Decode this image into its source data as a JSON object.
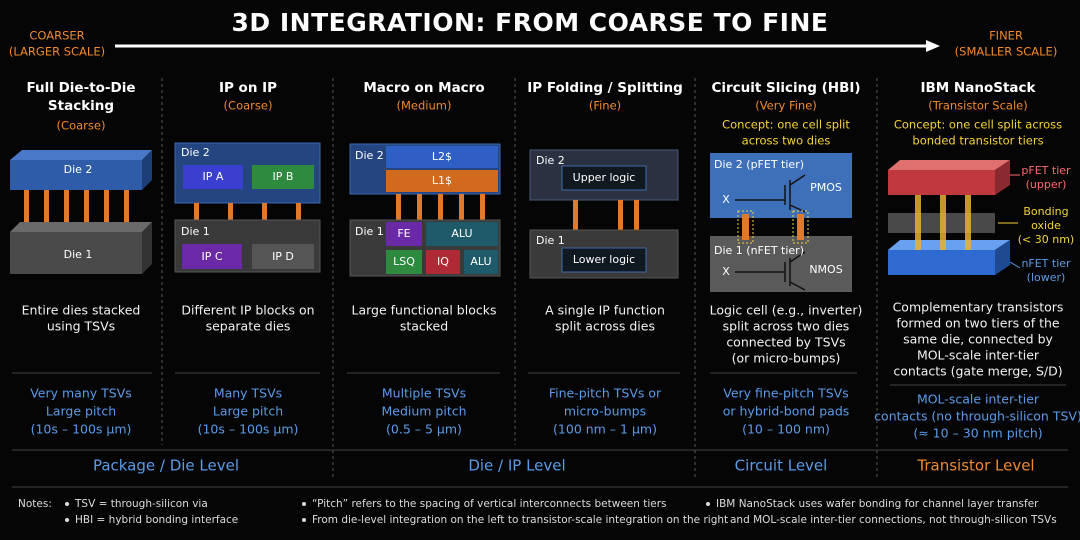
{
  "header": {
    "title": "3D INTEGRATION: FROM COARSE TO FINE",
    "left": [
      "COARSER",
      "(LARGER SCALE)"
    ],
    "right": [
      "FINER",
      "(SMALLER SCALE)"
    ]
  },
  "columns": [
    {
      "title": [
        "Full Die-to-Die",
        "Stacking"
      ],
      "scale": "(Coarse)",
      "diagram": [
        "Die 2",
        "Die 1"
      ],
      "description": [
        "Entire dies stacked",
        "using TSVs"
      ],
      "interconnect": [
        "Very many TSVs",
        "Large pitch",
        "(10s – 100s µm)"
      ]
    },
    {
      "title": [
        "IP on IP"
      ],
      "scale": "(Coarse)",
      "diagram": [
        "Die 2",
        "IP A",
        "IP B",
        "Die 1",
        "IP C",
        "IP D"
      ],
      "description": [
        "Different IP blocks on",
        "separate dies"
      ],
      "interconnect": [
        "Many TSVs",
        "Large pitch",
        "(10s – 100s µm)"
      ]
    },
    {
      "title": [
        "Macro on Macro"
      ],
      "scale": "(Medium)",
      "diagram": [
        "Die 2",
        "L2$",
        "L1$",
        "Die 1",
        "FE",
        "ALU",
        "LSQ",
        "IQ",
        "ALU"
      ],
      "description": [
        "Large functional blocks",
        "stacked"
      ],
      "interconnect": [
        "Multiple TSVs",
        "Medium pitch",
        "(0.5 – 5 µm)"
      ]
    },
    {
      "title": [
        "IP Folding / Splitting"
      ],
      "scale": "(Fine)",
      "diagram": [
        "Die 2",
        "Upper logic",
        "Die 1",
        "Lower logic"
      ],
      "description": [
        "A single IP function",
        "split across dies"
      ],
      "interconnect": [
        "Fine-pitch TSVs or",
        "micro-bumps",
        "(100 nm – 1 µm)"
      ]
    },
    {
      "title": [
        "Circuit Slicing (HBI)"
      ],
      "scale": "(Very Fine)",
      "concept": [
        "Concept: one cell split",
        "across two dies"
      ],
      "diagram": [
        "Die 2 (pFET tier)",
        "PMOS",
        "X",
        "Die 1 (nFET tier)",
        "X",
        "NMOS"
      ],
      "description": [
        "Logic cell (e.g., inverter)",
        "split across two dies",
        "connected by TSVs",
        "(or micro-bumps)"
      ],
      "interconnect": [
        "Very fine-pitch TSVs",
        "or hybrid-bond pads",
        "(10 – 100 nm)"
      ]
    },
    {
      "title": [
        "IBM NanoStack"
      ],
      "scale": "(Transistor Scale)",
      "concept": [
        "Concept: one cell split across",
        "bonded transistor tiers"
      ],
      "diagram": [
        "pFET tier",
        "(upper)",
        "Bonding",
        "oxide",
        "(< 30 nm)",
        "nFET tier",
        "(lower)"
      ],
      "description": [
        "Complementary transistors",
        "formed on two tiers of the",
        "same die, connected by",
        "MOL-scale inter-tier",
        "contacts (gate merge, S/D)"
      ],
      "interconnect": [
        "MOL-scale inter-tier",
        "contacts (no through-silicon TSV)",
        "(≈ 10 – 30 nm pitch)"
      ]
    }
  ],
  "levels": [
    "Package / Die Level",
    "Die / IP Level",
    "Circuit Level",
    "Transistor Level"
  ],
  "notes": {
    "label": "Notes:",
    "items": [
      "TSV = through-silicon via",
      "HBI = hybrid bonding interface",
      "“Pitch” refers to the spacing of vertical interconnects between tiers",
      "From die-level integration on the left to transistor-scale integration on the right",
      "IBM NanoStack uses wafer bonding for channel layer transfer",
      "and MOL-scale inter-tier connections, not through-silicon TSVs"
    ]
  }
}
